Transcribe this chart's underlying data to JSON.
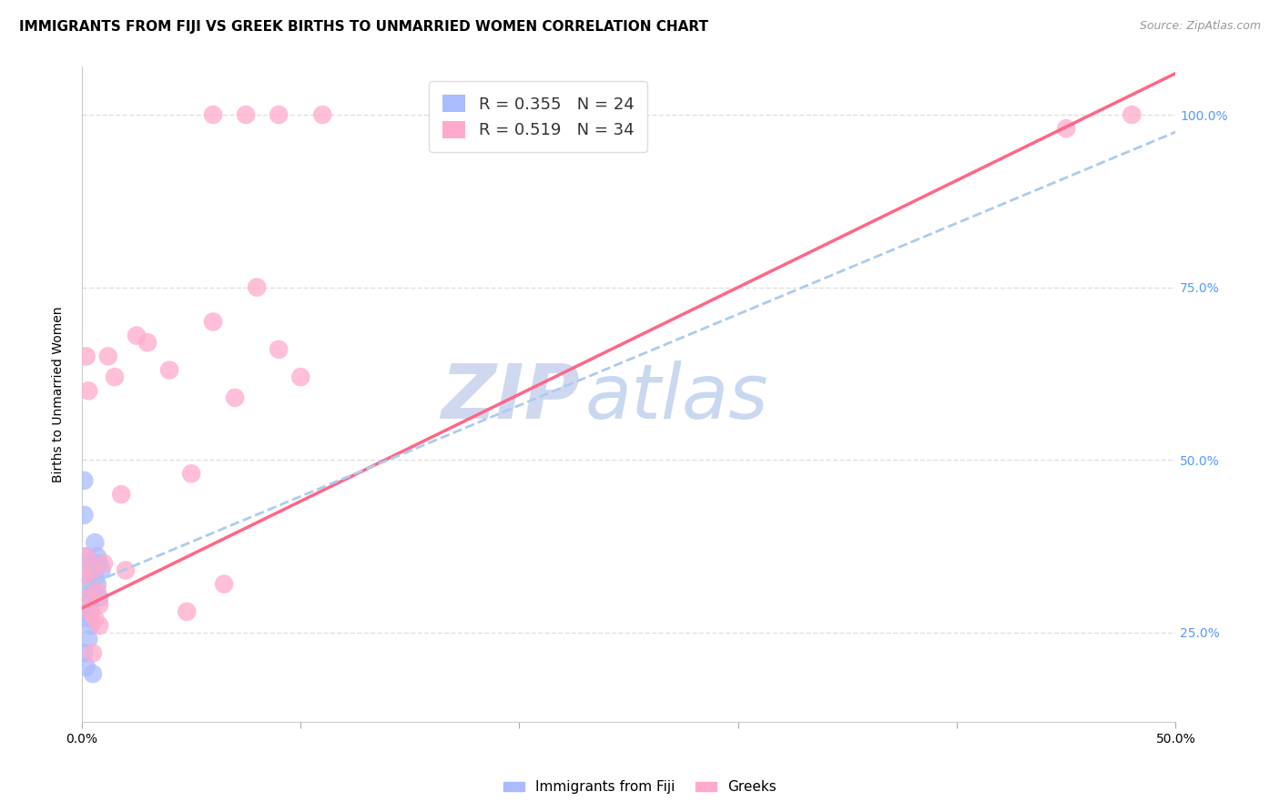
{
  "title": "IMMIGRANTS FROM FIJI VS GREEK BIRTHS TO UNMARRIED WOMEN CORRELATION CHART",
  "source": "Source: ZipAtlas.com",
  "ylabel": "Births to Unmarried Women",
  "xlim": [
    0.0,
    0.5
  ],
  "ylim": [
    0.12,
    1.07
  ],
  "fiji_color": "#aabbff",
  "greek_color": "#ffaacc",
  "fiji_line_color": "#aaccee",
  "greek_line_color": "#ff6688",
  "fiji_R": 0.355,
  "fiji_N": 24,
  "greek_R": 0.519,
  "greek_N": 34,
  "right_ytick_color": "#5599ff",
  "right_yticklabels": [
    "25.0%",
    "50.0%",
    "75.0%",
    "100.0%"
  ],
  "right_ytick_vals": [
    0.25,
    0.5,
    0.75,
    1.0
  ],
  "background_color": "#ffffff",
  "grid_color": "#e0e0e0",
  "title_fontsize": 11,
  "axis_label_fontsize": 10,
  "tick_fontsize": 10,
  "legend_fontsize": 13,
  "watermark_zip": "ZIP",
  "watermark_atlas": "atlas",
  "watermark_color": "#ddeeff",
  "watermark_fontsize": 60,
  "fiji_x": [
    0.001,
    0.001,
    0.002,
    0.002,
    0.002,
    0.003,
    0.003,
    0.003,
    0.004,
    0.004,
    0.004,
    0.005,
    0.005,
    0.006,
    0.006,
    0.007,
    0.007,
    0.008,
    0.008,
    0.009,
    0.001,
    0.002,
    0.003,
    0.005
  ],
  "fiji_y": [
    0.47,
    0.42,
    0.36,
    0.32,
    0.28,
    0.35,
    0.3,
    0.27,
    0.33,
    0.29,
    0.26,
    0.34,
    0.31,
    0.38,
    0.33,
    0.36,
    0.32,
    0.35,
    0.3,
    0.34,
    0.22,
    0.2,
    0.24,
    0.19
  ],
  "greek_x": [
    0.001,
    0.002,
    0.003,
    0.004,
    0.005,
    0.006,
    0.007,
    0.008,
    0.01,
    0.012,
    0.015,
    0.018,
    0.02,
    0.025,
    0.03,
    0.04,
    0.05,
    0.06,
    0.07,
    0.08,
    0.09,
    0.1,
    0.06,
    0.075,
    0.09,
    0.11,
    0.048,
    0.065,
    0.45,
    0.48,
    0.002,
    0.003,
    0.005,
    0.008
  ],
  "greek_y": [
    0.33,
    0.36,
    0.3,
    0.28,
    0.34,
    0.27,
    0.31,
    0.26,
    0.35,
    0.65,
    0.62,
    0.45,
    0.34,
    0.68,
    0.67,
    0.63,
    0.48,
    0.7,
    0.59,
    0.75,
    0.66,
    0.62,
    1.0,
    1.0,
    1.0,
    1.0,
    0.28,
    0.32,
    0.98,
    1.0,
    0.65,
    0.6,
    0.22,
    0.29
  ]
}
